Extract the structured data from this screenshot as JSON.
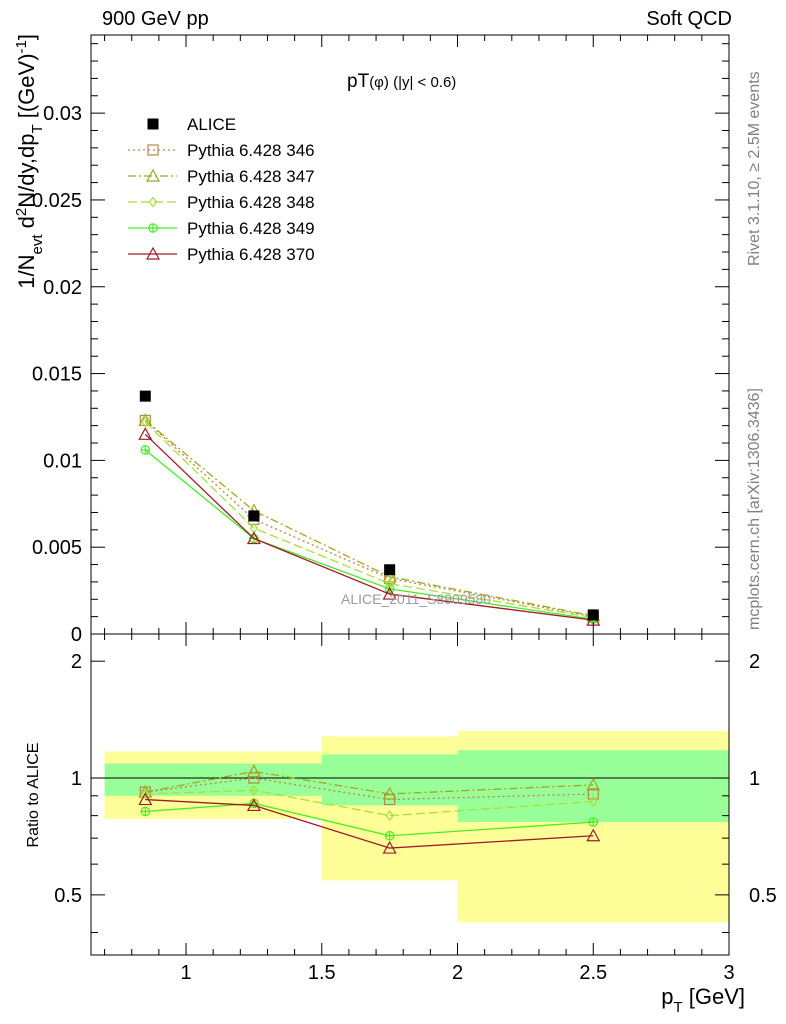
{
  "header": {
    "left_label": "900 GeV pp",
    "right_label": "Soft QCD"
  },
  "side_labels": {
    "rivet": "Rivet 3.1.10, ≥ 2.5M events",
    "mcplots": "mcplots.cern.ch [arXiv:1306.3436]"
  },
  "chart_data": [
    {
      "type": "line",
      "panel": "main",
      "title": "pT(φ) (|y| < 0.6)",
      "ylabel": "1/N_evt d²N/dy,dp_T [(GeV)⁻¹]",
      "xlabel": "p_T [GeV]",
      "xlim": [
        0.65,
        3.0
      ],
      "ylim": [
        0,
        0.0345
      ],
      "yticks": [
        "0",
        "0.005",
        "0.01",
        "0.015",
        "0.02",
        "0.025",
        "0.03"
      ],
      "ytick_values": [
        0,
        0.005,
        0.01,
        0.015,
        0.02,
        0.025,
        0.03
      ],
      "legend_position": "top-left",
      "watermark": "ALICE_2011_S8909580",
      "x": [
        0.85,
        1.25,
        1.75,
        2.5
      ],
      "data": {
        "name": "ALICE",
        "color": "#000000",
        "values": [
          0.0137,
          0.0068,
          0.0037,
          0.0011
        ]
      },
      "series": [
        {
          "name": "Pythia 6.428 346",
          "color": "#b8864a",
          "marker": "square",
          "dash": "2,3",
          "values": [
            0.0123,
            0.0066,
            0.0032,
            0.001
          ]
        },
        {
          "name": "Pythia 6.428 347",
          "color": "#a2a61e",
          "marker": "triangle",
          "dash": "8,3,2,3",
          "values": [
            0.0123,
            0.0071,
            0.0033,
            0.00105
          ]
        },
        {
          "name": "Pythia 6.428 348",
          "color": "#a8e03a",
          "marker": "diamond",
          "dash": "9,4",
          "values": [
            0.0122,
            0.0061,
            0.0029,
            0.00095
          ]
        },
        {
          "name": "Pythia 6.428 349",
          "color": "#44ee22",
          "marker": "cross",
          "dash": "",
          "values": [
            0.0106,
            0.0055,
            0.0026,
            0.00085
          ]
        },
        {
          "name": "Pythia 6.428 370",
          "color": "#a01b2b",
          "marker": "triangle",
          "dash": "",
          "values": [
            0.0115,
            0.0055,
            0.0023,
            0.0008
          ]
        }
      ]
    },
    {
      "type": "line",
      "panel": "ratio",
      "ylabel": "Ratio to ALICE",
      "xlabel": "p_T [GeV]",
      "xlim": [
        0.65,
        3.0
      ],
      "ylim": [
        0.35,
        2.35
      ],
      "yticks": [
        "0.5",
        "1",
        "2"
      ],
      "ytick_values": [
        0.5,
        1,
        2
      ],
      "xticks": [
        "1",
        "1.5",
        "2",
        "2.5",
        "3"
      ],
      "xtick_values": [
        1,
        1.5,
        2,
        2.5,
        3
      ],
      "bands": [
        {
          "x": [
            0.7,
            1.5
          ],
          "stat": [
            0.9,
            1.09
          ],
          "total": [
            0.785,
            1.17
          ]
        },
        {
          "x": [
            1.5,
            2.0
          ],
          "stat": [
            0.85,
            1.15
          ],
          "total": [
            0.545,
            1.28
          ]
        },
        {
          "x": [
            2.0,
            3.0
          ],
          "stat": [
            0.77,
            1.18
          ],
          "total": [
            0.425,
            1.32
          ]
        }
      ],
      "band_colors": {
        "stat": "#99ff99",
        "total": "#ffff99"
      },
      "x": [
        0.85,
        1.25,
        1.75,
        2.5
      ],
      "series": [
        {
          "name": "Pythia 6.428 346",
          "values": [
            0.92,
            1.0,
            0.88,
            0.91
          ]
        },
        {
          "name": "Pythia 6.428 347",
          "values": [
            0.92,
            1.04,
            0.91,
            0.96
          ]
        },
        {
          "name": "Pythia 6.428 348",
          "values": [
            0.91,
            0.93,
            0.8,
            0.87
          ]
        },
        {
          "name": "Pythia 6.428 349",
          "values": [
            0.82,
            0.86,
            0.71,
            0.77
          ]
        },
        {
          "name": "Pythia 6.428 370",
          "values": [
            0.88,
            0.85,
            0.66,
            0.71
          ]
        }
      ]
    }
  ]
}
